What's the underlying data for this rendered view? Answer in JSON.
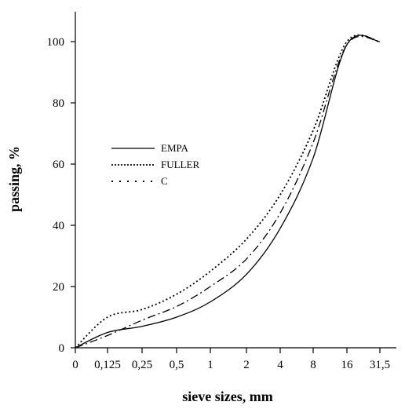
{
  "chart_data": {
    "type": "line",
    "xlabel": "sieve sizes, mm",
    "ylabel": "passing, %",
    "x_ticks": [
      "0",
      "0,125",
      "0,25",
      "0,5",
      "1",
      "2",
      "4",
      "8",
      "16",
      "31,5"
    ],
    "y_ticks": [
      0,
      20,
      40,
      60,
      80,
      100
    ],
    "ylim": [
      0,
      110
    ],
    "x_scale": "categorical sieve positions (approximately logarithmic)",
    "legend": {
      "placement": "center-left",
      "entries": [
        "EMPA",
        "FULLER",
        "C"
      ]
    },
    "grid": false,
    "series": [
      {
        "name": "EMPA",
        "style": "solid",
        "x": [
          "0",
          "0,125",
          "0,25",
          "0,5",
          "1",
          "2",
          "4",
          "8",
          "16",
          "31,5"
        ],
        "values": [
          0,
          5,
          7,
          10,
          15,
          24,
          39,
          62,
          99,
          100
        ]
      },
      {
        "name": "FULLER",
        "style": "dotted",
        "x": [
          "0",
          "0,125",
          "0,25",
          "0,5",
          "1",
          "2",
          "4",
          "8",
          "16",
          "31,5"
        ],
        "values": [
          0,
          10,
          12.5,
          17.5,
          25,
          35.5,
          50,
          71,
          100,
          100
        ]
      },
      {
        "name": "C",
        "style": "dash-dot",
        "x": [
          "0",
          "0,125",
          "0,25",
          "0,5",
          "1",
          "2",
          "4",
          "8",
          "16",
          "31,5"
        ],
        "values": [
          0,
          4,
          9,
          13.5,
          20,
          29,
          44,
          67,
          99,
          100
        ]
      }
    ]
  }
}
